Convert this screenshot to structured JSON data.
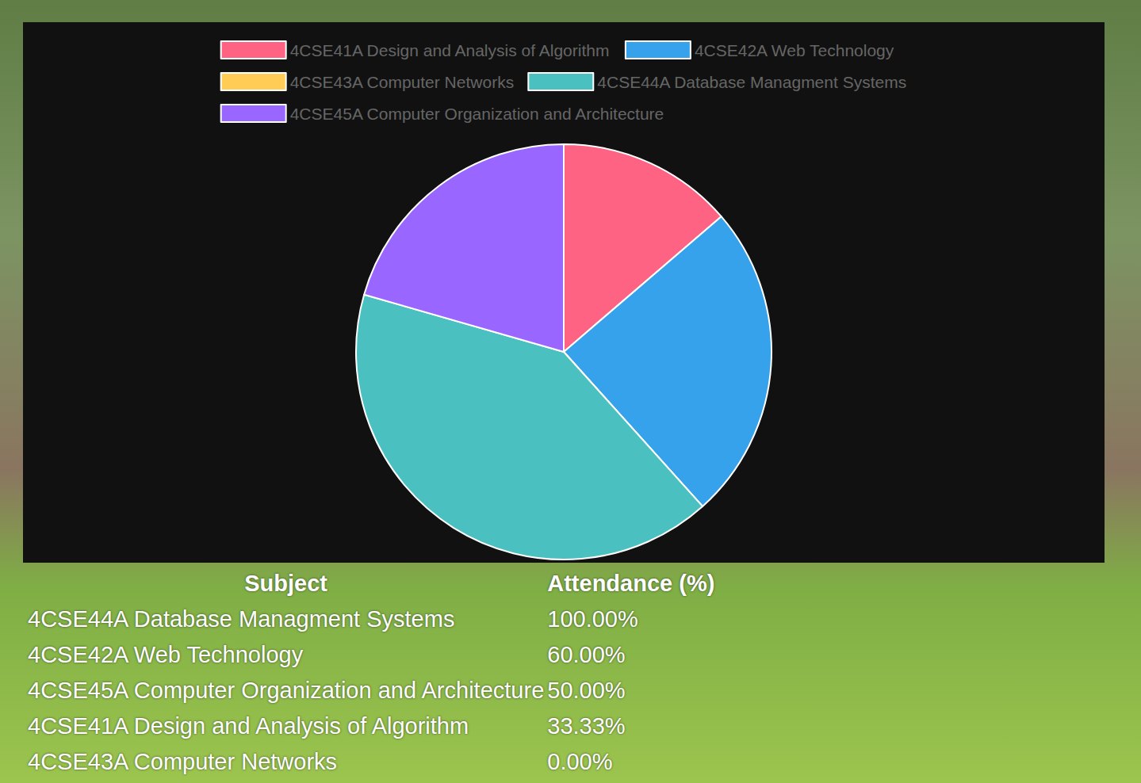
{
  "chart_data": {
    "type": "pie",
    "categories": [
      "4CSE41A Design and Analysis of Algorithm",
      "4CSE42A Web Technology",
      "4CSE43A Computer Networks",
      "4CSE44A Database Managment Systems",
      "4CSE45A Computer Organization and Architecture"
    ],
    "values": [
      33.33,
      60,
      0,
      100,
      50
    ],
    "colors": [
      "#ff6384",
      "#36a2eb",
      "#ffcd56",
      "#4bc0c0",
      "#9966ff"
    ],
    "legend": "top",
    "data_labels": false
  },
  "table": {
    "header": [
      "Subject",
      "Attendance (%)"
    ],
    "rows": [
      [
        "4CSE44A Database Managment Systems",
        "100.00%"
      ],
      [
        "4CSE42A Web Technology",
        "60.00%"
      ],
      [
        "4CSE45A Computer Organization and Architecture",
        "50.00%"
      ],
      [
        "4CSE41A Design and Analysis of Algorithm",
        "33.33%"
      ],
      [
        "4CSE43A Computer Networks",
        "0.00%"
      ]
    ]
  }
}
